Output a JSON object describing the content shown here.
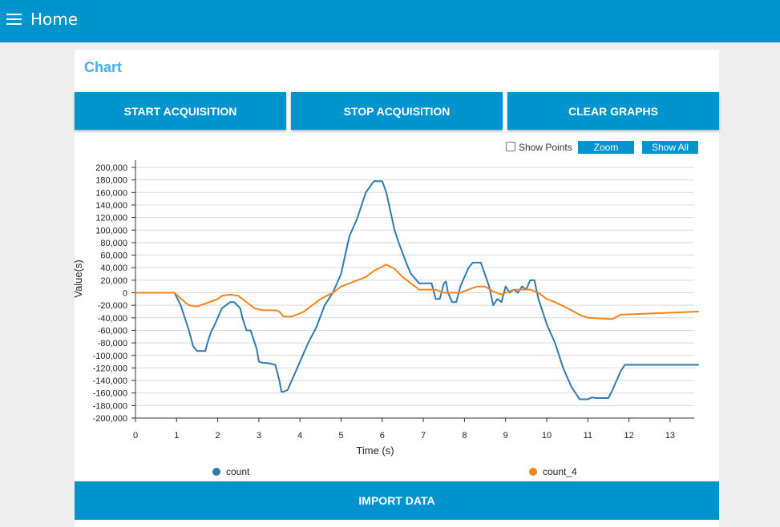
{
  "header": {
    "title": "Home"
  },
  "card": {
    "title": "Chart"
  },
  "buttons": {
    "start": "START ACQUISITION",
    "stop": "STOP ACQUISITION",
    "clear": "CLEAR GRAPHS",
    "import": "IMPORT DATA"
  },
  "controls": {
    "show_points": "Show Points",
    "zoom": "Zoom",
    "show_all": "Show All"
  },
  "colors": {
    "accent": "#0094ce",
    "title": "#40b0e6",
    "series_count": "#2e7bb0",
    "series_count_4": "#f58518"
  },
  "chart_data": {
    "type": "line",
    "xlabel": "Time (s)",
    "ylabel": "Value(s)",
    "xlim": [
      0,
      13.7
    ],
    "ylim": [
      -200000,
      200000
    ],
    "xticks": [
      0,
      1,
      2,
      3,
      4,
      5,
      6,
      7,
      8,
      9,
      10,
      11,
      12,
      13
    ],
    "yticks": [
      200000,
      180000,
      160000,
      140000,
      120000,
      100000,
      80000,
      60000,
      40000,
      20000,
      0,
      -20000,
      -40000,
      -60000,
      -80000,
      -100000,
      -120000,
      -140000,
      -160000,
      -180000,
      -200000
    ],
    "ytick_labels": [
      "200,000",
      "180,000",
      "160,000",
      "140,000",
      "120,000",
      "100,000",
      "80,000",
      "60,000",
      "40,000",
      "20,000",
      "0",
      "-20,000",
      "-40,000",
      "-60,000",
      "-80,000",
      "-100,000",
      "-120,000",
      "-140,000",
      "-160,000",
      "-180,000",
      "-200,000"
    ],
    "grid": true,
    "legend_position": "bottom",
    "series": [
      {
        "name": "count",
        "color": "#2e7bb0",
        "x": [
          0,
          0.95,
          1.1,
          1.3,
          1.4,
          1.5,
          1.6,
          1.7,
          1.75,
          1.85,
          1.9,
          2.0,
          2.1,
          2.3,
          2.4,
          2.55,
          2.6,
          2.7,
          2.8,
          2.95,
          3.0,
          3.1,
          3.2,
          3.4,
          3.5,
          3.55,
          3.6,
          3.7,
          3.8,
          3.9,
          4.0,
          4.1,
          4.2,
          4.4,
          4.6,
          4.8,
          5.0,
          5.1,
          5.2,
          5.4,
          5.6,
          5.8,
          6.0,
          6.1,
          6.3,
          6.4,
          6.6,
          6.7,
          6.9,
          7.2,
          7.3,
          7.4,
          7.5,
          7.55,
          7.6,
          7.7,
          7.8,
          7.9,
          8.0,
          8.1,
          8.2,
          8.3,
          8.4,
          8.6,
          8.7,
          8.8,
          8.9,
          9.0,
          9.1,
          9.2,
          9.3,
          9.4,
          9.5,
          9.6,
          9.7,
          9.8,
          10.0,
          10.2,
          10.4,
          10.6,
          10.8,
          11.0,
          11.1,
          11.2,
          11.3,
          11.5,
          11.6,
          11.8,
          11.9,
          13.7
        ],
        "values": [
          0,
          0,
          -20000,
          -60000,
          -85000,
          -93000,
          -93000,
          -93000,
          -80000,
          -60000,
          -55000,
          -40000,
          -25000,
          -15000,
          -15000,
          -25000,
          -40000,
          -60000,
          -60000,
          -90000,
          -110000,
          -112000,
          -112000,
          -115000,
          -140000,
          -158000,
          -158000,
          -155000,
          -140000,
          -125000,
          -110000,
          -95000,
          -80000,
          -55000,
          -20000,
          0,
          30000,
          60000,
          90000,
          120000,
          160000,
          178000,
          178000,
          160000,
          100000,
          80000,
          45000,
          30000,
          15000,
          15000,
          -10000,
          -10000,
          15000,
          18000,
          0,
          -15000,
          -15000,
          10000,
          25000,
          40000,
          48000,
          48000,
          48000,
          10000,
          -20000,
          -10000,
          -15000,
          10000,
          0,
          5000,
          0,
          10000,
          5000,
          20000,
          20000,
          -10000,
          -50000,
          -80000,
          -120000,
          -150000,
          -170000,
          -170000,
          -167000,
          -168000,
          -168000,
          -168000,
          -155000,
          -125000,
          -115000,
          -115000
        ]
      },
      {
        "name": "count_4",
        "color": "#f58518",
        "x": [
          0,
          0.95,
          1.2,
          1.3,
          1.5,
          1.8,
          2.0,
          2.1,
          2.3,
          2.5,
          2.9,
          3.1,
          3.4,
          3.5,
          3.6,
          3.8,
          4.0,
          4.1,
          4.3,
          4.5,
          4.8,
          5.0,
          5.2,
          5.6,
          5.8,
          6.1,
          6.3,
          6.5,
          6.7,
          6.9,
          7.3,
          7.5,
          7.9,
          8.1,
          8.3,
          8.5,
          8.7,
          8.9,
          9.0,
          9.2,
          9.6,
          9.8,
          10.0,
          10.2,
          10.6,
          10.8,
          11.0,
          11.6,
          11.8,
          13.7
        ],
        "values": [
          0,
          0,
          -15000,
          -20000,
          -22000,
          -15000,
          -10000,
          -5000,
          -3000,
          -5000,
          -25000,
          -28000,
          -28000,
          -30000,
          -38000,
          -38000,
          -33000,
          -30000,
          -20000,
          -10000,
          0,
          10000,
          15000,
          25000,
          35000,
          45000,
          38000,
          25000,
          15000,
          5000,
          5000,
          0,
          0,
          5000,
          10000,
          10000,
          2000,
          -3000,
          0,
          5000,
          5000,
          0,
          -10000,
          -15000,
          -28000,
          -35000,
          -40000,
          -42000,
          -35000,
          -30000
        ]
      }
    ]
  }
}
